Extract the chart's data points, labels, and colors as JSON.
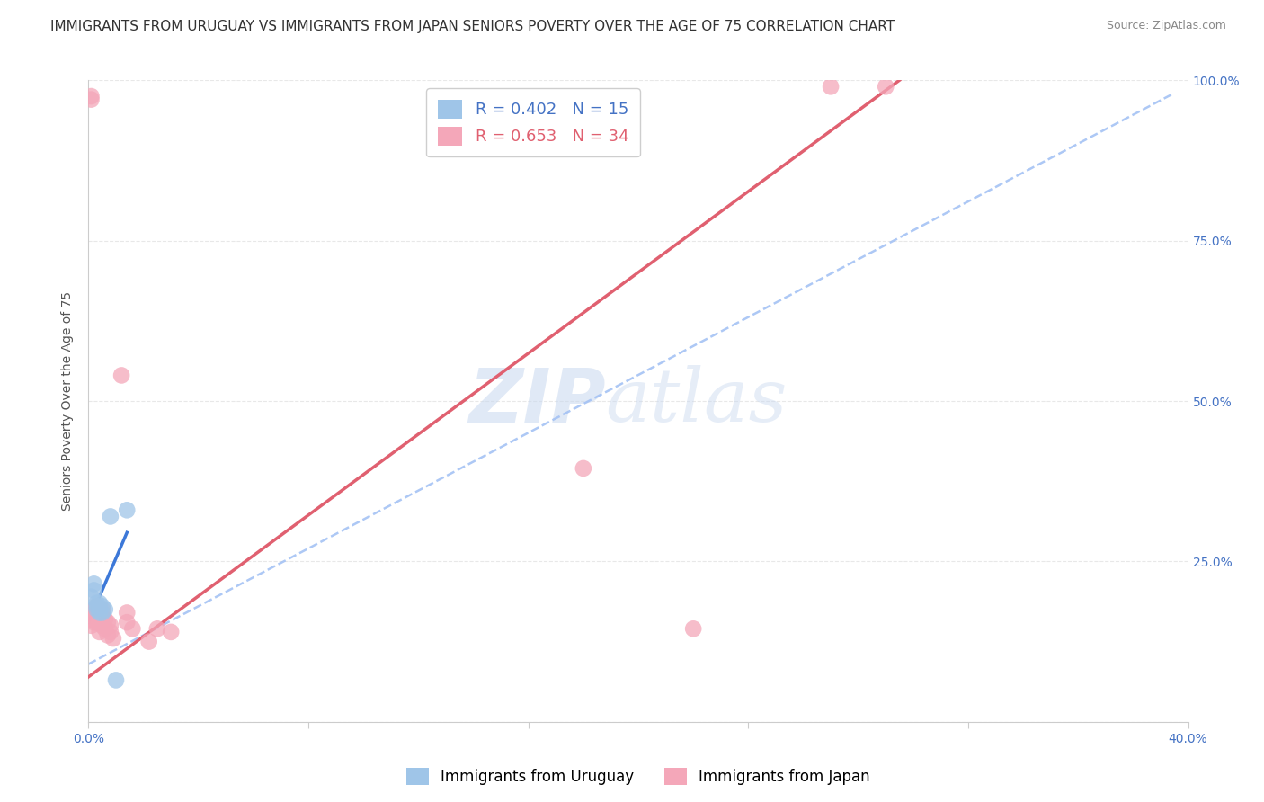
{
  "title": "IMMIGRANTS FROM URUGUAY VS IMMIGRANTS FROM JAPAN SENIORS POVERTY OVER THE AGE OF 75 CORRELATION CHART",
  "source": "Source: ZipAtlas.com",
  "ylabel": "Seniors Poverty Over the Age of 75",
  "xlim": [
    0.0,
    0.4
  ],
  "ylim": [
    0.0,
    1.0
  ],
  "xtick_positions": [
    0.0,
    0.08,
    0.16,
    0.24,
    0.32,
    0.4
  ],
  "xtick_labels": [
    "0.0%",
    "",
    "",
    "",
    "",
    "40.0%"
  ],
  "ytick_positions": [
    0.0,
    0.25,
    0.5,
    0.75,
    1.0
  ],
  "ytick_labels_right": [
    "",
    "25.0%",
    "50.0%",
    "75.0%",
    "100.0%"
  ],
  "watermark": "ZIPatlas",
  "legend_labels_bottom": [
    "Immigrants from Uruguay",
    "Immigrants from Japan"
  ],
  "uruguay_color": "#9fc5e8",
  "japan_color": "#f4a7b9",
  "uruguay_line_color": "#3c78d8",
  "japan_line_color": "#e06070",
  "dashed_line_color": "#a4c2f4",
  "uruguay_points": [
    [
      0.001,
      0.195
    ],
    [
      0.002,
      0.215
    ],
    [
      0.002,
      0.205
    ],
    [
      0.003,
      0.185
    ],
    [
      0.003,
      0.18
    ],
    [
      0.003,
      0.175
    ],
    [
      0.004,
      0.185
    ],
    [
      0.004,
      0.178
    ],
    [
      0.004,
      0.17
    ],
    [
      0.005,
      0.18
    ],
    [
      0.005,
      0.17
    ],
    [
      0.006,
      0.175
    ],
    [
      0.008,
      0.32
    ],
    [
      0.01,
      0.065
    ],
    [
      0.014,
      0.33
    ]
  ],
  "japan_points": [
    [
      0.001,
      0.16
    ],
    [
      0.001,
      0.15
    ],
    [
      0.001,
      0.97
    ],
    [
      0.001,
      0.975
    ],
    [
      0.002,
      0.175
    ],
    [
      0.002,
      0.165
    ],
    [
      0.002,
      0.155
    ],
    [
      0.003,
      0.18
    ],
    [
      0.003,
      0.17
    ],
    [
      0.003,
      0.155
    ],
    [
      0.004,
      0.165
    ],
    [
      0.004,
      0.155
    ],
    [
      0.004,
      0.14
    ],
    [
      0.005,
      0.175
    ],
    [
      0.005,
      0.165
    ],
    [
      0.005,
      0.15
    ],
    [
      0.006,
      0.16
    ],
    [
      0.006,
      0.145
    ],
    [
      0.007,
      0.155
    ],
    [
      0.007,
      0.135
    ],
    [
      0.008,
      0.15
    ],
    [
      0.008,
      0.14
    ],
    [
      0.009,
      0.13
    ],
    [
      0.012,
      0.54
    ],
    [
      0.014,
      0.17
    ],
    [
      0.014,
      0.155
    ],
    [
      0.016,
      0.145
    ],
    [
      0.022,
      0.125
    ],
    [
      0.025,
      0.145
    ],
    [
      0.03,
      0.14
    ],
    [
      0.18,
      0.395
    ],
    [
      0.22,
      0.145
    ],
    [
      0.27,
      0.99
    ],
    [
      0.29,
      0.99
    ]
  ],
  "uruguay_line": {
    "x0": 0.0,
    "y0": 0.155,
    "x1": 0.014,
    "y1": 0.295
  },
  "japan_line": {
    "x0": 0.0,
    "y0": 0.07,
    "x1": 0.295,
    "y1": 1.0
  },
  "dashed_line": {
    "x0": 0.0,
    "y0": 0.09,
    "x1": 0.395,
    "y1": 0.98
  },
  "background_color": "#ffffff",
  "grid_color": "#e8e8e8",
  "title_fontsize": 11,
  "axis_label_fontsize": 10,
  "tick_fontsize": 10
}
